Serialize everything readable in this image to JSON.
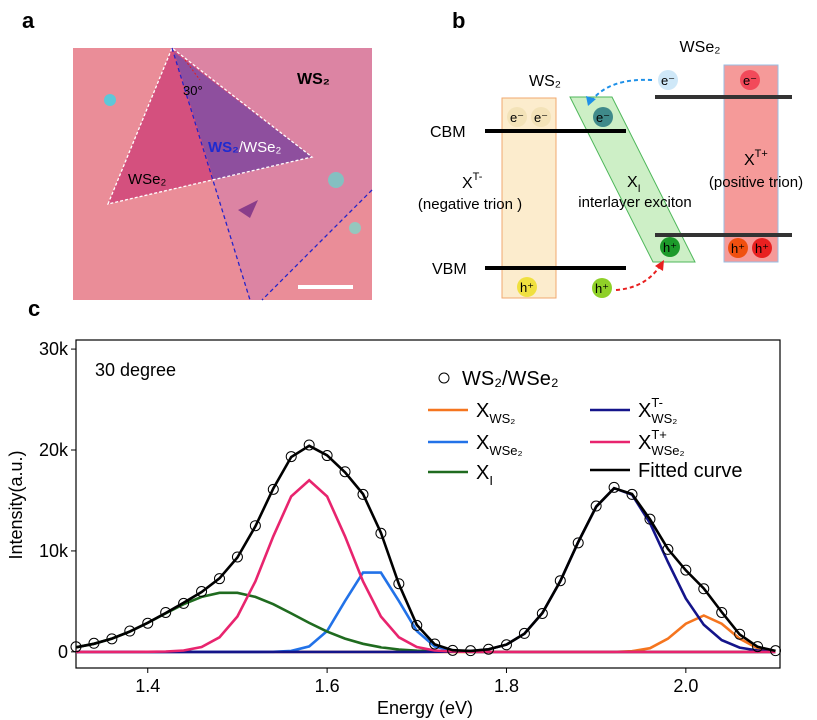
{
  "panel_a": {
    "label": "a",
    "ws2": "WS₂",
    "wse2": "WSe₂",
    "overlap": [
      "WS₂",
      "/WSe₂"
    ],
    "angle": "30°"
  },
  "panel_b": {
    "label": "b",
    "wse2": "WSe₂",
    "ws2": "WS₂",
    "cbm": "CBM",
    "vbm": "VBM",
    "electrons": [
      "e⁻",
      "e⁻",
      "e⁻",
      "e⁻",
      "e⁻"
    ],
    "holes": [
      "h⁺",
      "h⁺",
      "h⁺",
      "h⁺",
      "h⁺"
    ],
    "negative_trion": {
      "base": "X",
      "sup": "T-",
      "desc": "(negative trion )"
    },
    "interlayer": {
      "base": "X",
      "sub": "I",
      "desc": "interlayer exciton"
    },
    "positive_trion": {
      "base": "X",
      "sup": "T+",
      "desc": "(positive trion)"
    }
  },
  "chart_data": {
    "type": "line",
    "panel_label": "c",
    "annotation": "30 degree",
    "x_label": "Energy (eV)",
    "y_label": "Intensity(a.u.)",
    "xlim": [
      1.32,
      2.105
    ],
    "ylim": [
      -1600,
      30900
    ],
    "xticks": [
      1.4,
      1.6,
      1.8,
      {
        "value": 2,
        "label": "2.0"
      }
    ],
    "yticks": [
      0,
      {
        "value": 10000,
        "label": "10k"
      },
      {
        "value": 20000,
        "label": "20k"
      },
      {
        "value": 30000,
        "label": "30k"
      }
    ],
    "x": [
      1.32,
      1.34,
      1.36,
      1.38,
      1.4,
      1.42,
      1.44,
      1.46,
      1.48,
      1.5,
      1.52,
      1.54,
      1.56,
      1.58,
      1.6,
      1.62,
      1.64,
      1.66,
      1.68,
      1.7,
      1.72,
      1.74,
      1.76,
      1.78,
      1.8,
      1.82,
      1.84,
      1.86,
      1.88,
      1.9,
      1.92,
      1.94,
      1.96,
      1.98,
      2,
      2.02,
      2.04,
      2.06,
      2.08,
      2.1
    ],
    "series": [
      {
        "name": "WS₂/WSe₂",
        "marker": "circle",
        "color": "#000000",
        "values": [
          500,
          850,
          1290,
          2060,
          2840,
          3900,
          4800,
          5980,
          7250,
          9400,
          12500,
          16100,
          19350,
          20500,
          19450,
          17850,
          15600,
          11750,
          6750,
          2620,
          780,
          150,
          120,
          260,
          700,
          1830,
          3800,
          7050,
          10800,
          14450,
          16300,
          15600,
          13150,
          10150,
          8100,
          6250,
          3900,
          1750,
          520,
          120
        ]
      },
      {
        "name": "X",
        "subscript": "WS₂",
        "color": "#f5751f",
        "values": [
          0,
          0,
          0,
          0,
          0,
          0,
          0,
          0,
          0,
          0,
          0,
          0,
          0,
          0,
          0,
          0,
          0,
          0,
          0,
          0,
          0,
          0,
          0,
          0,
          0,
          0,
          0,
          0,
          0,
          0,
          0,
          60,
          364,
          1300,
          2790,
          3600,
          2790,
          1300,
          364,
          60
        ]
      },
      {
        "name": "X",
        "subscript": "WSe₂",
        "color": "#2272e8",
        "values": [
          0,
          0,
          0,
          0,
          0,
          0,
          0,
          0,
          0,
          0,
          0,
          10,
          92,
          545,
          2070,
          5030,
          7850,
          7850,
          5030,
          2070,
          545,
          92,
          10,
          0,
          0,
          0,
          0,
          0,
          0,
          0,
          0,
          0,
          0,
          0,
          0,
          0,
          0,
          0,
          0,
          0
        ]
      },
      {
        "name": "X",
        "subscript": "I",
        "color": "#1f6b1f",
        "values": [
          452,
          798,
          1313,
          2010,
          2870,
          3815,
          4725,
          5446,
          5848,
          5848,
          5446,
          4725,
          3815,
          2870,
          2010,
          1313,
          798,
          452,
          238,
          117,
          54,
          23,
          9,
          3,
          1,
          0,
          0,
          0,
          0,
          0,
          0,
          0,
          0,
          0,
          0,
          0,
          0,
          0,
          0,
          0
        ]
      },
      {
        "name": "X",
        "superscript": "T-",
        "subscript": "WS₂",
        "color": "#14148a",
        "values": [
          0,
          0,
          0,
          0,
          0,
          0,
          0,
          0,
          0,
          0,
          0,
          0,
          0,
          0,
          0,
          0,
          0,
          0,
          0,
          0,
          3,
          17,
          70,
          245,
          716,
          1800,
          3840,
          7000,
          10870,
          14380,
          16220,
          15580,
          12760,
          8900,
          5290,
          2680,
          1160,
          425,
          133,
          36
        ]
      },
      {
        "name": "X",
        "superscript": "T+",
        "subscript": "WSe₂",
        "color": "#e8246e",
        "values": [
          0,
          0,
          0,
          0,
          6,
          31,
          134,
          484,
          1440,
          3500,
          6990,
          11450,
          15400,
          17000,
          15400,
          11450,
          6990,
          3500,
          1440,
          484,
          134,
          31,
          6,
          0,
          0,
          0,
          0,
          0,
          0,
          0,
          0,
          0,
          0,
          0,
          0,
          0,
          0,
          0,
          0,
          0
        ]
      },
      {
        "name": "Fitted curve",
        "color": "#000000",
        "values": [
          452,
          798,
          1313,
          2010,
          2876,
          3846,
          4859,
          5930,
          7288,
          9348,
          12436,
          16185,
          19307,
          20415,
          19480,
          17793,
          15638,
          11802,
          6708,
          2671,
          736,
          163,
          95,
          248,
          717,
          1800,
          3840,
          7000,
          10870,
          14380,
          16220,
          15640,
          13124,
          10200,
          8080,
          6280,
          3950,
          1725,
          497,
          96
        ]
      }
    ]
  }
}
